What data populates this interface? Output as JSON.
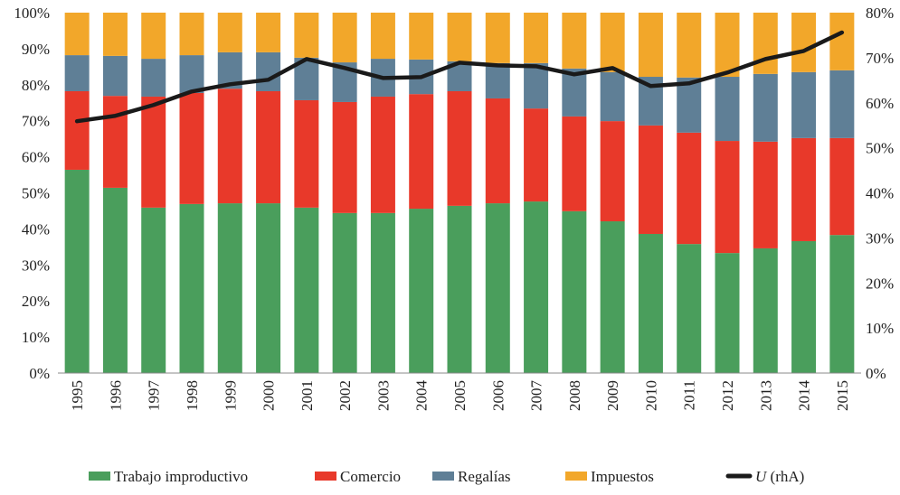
{
  "chart_data": {
    "type": "bar",
    "stacked": true,
    "categories": [
      "1995",
      "1996",
      "1997",
      "1998",
      "1999",
      "2000",
      "2001",
      "2002",
      "2003",
      "2004",
      "2005",
      "2006",
      "2007",
      "2008",
      "2009",
      "2010",
      "2011",
      "2012",
      "2013",
      "2014",
      "2015"
    ],
    "series": [
      {
        "name": "Trabajo improductivo",
        "color": "#4a9e5c",
        "axis": "left",
        "values": [
          56.4,
          51.4,
          45.9,
          46.9,
          47.1,
          47.1,
          45.9,
          44.4,
          44.4,
          45.6,
          46.4,
          47.1,
          47.6,
          44.9,
          42.1,
          38.6,
          35.8,
          33.3,
          34.6,
          36.6,
          38.3
        ]
      },
      {
        "name": "Comercio",
        "color": "#e8392a",
        "axis": "left",
        "values": [
          21.8,
          25.5,
          30.8,
          30.8,
          31.8,
          31.1,
          29.8,
          30.8,
          32.3,
          31.8,
          31.8,
          29.1,
          25.8,
          26.3,
          27.8,
          30.1,
          30.9,
          31.1,
          29.6,
          28.6,
          26.9
        ]
      },
      {
        "name": "Regalías",
        "color": "#5f7f96",
        "axis": "left",
        "values": [
          10.0,
          11.1,
          10.5,
          10.5,
          10.1,
          10.8,
          11.8,
          11.0,
          10.5,
          9.6,
          8.3,
          9.8,
          12.6,
          13.3,
          13.6,
          13.5,
          15.3,
          17.8,
          18.8,
          18.3,
          18.8
        ]
      },
      {
        "name": "Impuestos",
        "color": "#f2a72a",
        "axis": "left",
        "values": [
          11.8,
          12.0,
          12.8,
          11.8,
          11.0,
          11.0,
          12.5,
          13.8,
          12.8,
          13.0,
          13.5,
          14.0,
          14.0,
          15.5,
          16.5,
          17.8,
          18.0,
          17.8,
          17.0,
          16.5,
          16.0
        ]
      }
    ],
    "line": {
      "name_italic": "U",
      "name_rest": " (rhA)",
      "color": "#1a1a1a",
      "axis": "right",
      "values": [
        55.9,
        57.1,
        59.5,
        62.5,
        64.1,
        65.1,
        69.7,
        67.7,
        65.5,
        65.7,
        68.9,
        68.3,
        68.1,
        66.3,
        67.7,
        63.7,
        64.3,
        66.7,
        69.7,
        71.5,
        75.6
      ]
    },
    "left_axis": {
      "ylim": [
        0,
        100
      ],
      "ticks": [
        "0%",
        "10%",
        "20%",
        "30%",
        "40%",
        "50%",
        "60%",
        "70%",
        "80%",
        "90%",
        "100%"
      ]
    },
    "right_axis": {
      "ylim": [
        0,
        80
      ],
      "ticks": [
        "0%",
        "10%",
        "20%",
        "30%",
        "40%",
        "50%",
        "60%",
        "70%",
        "80%"
      ]
    },
    "grid": false,
    "legend_position": "bottom"
  }
}
